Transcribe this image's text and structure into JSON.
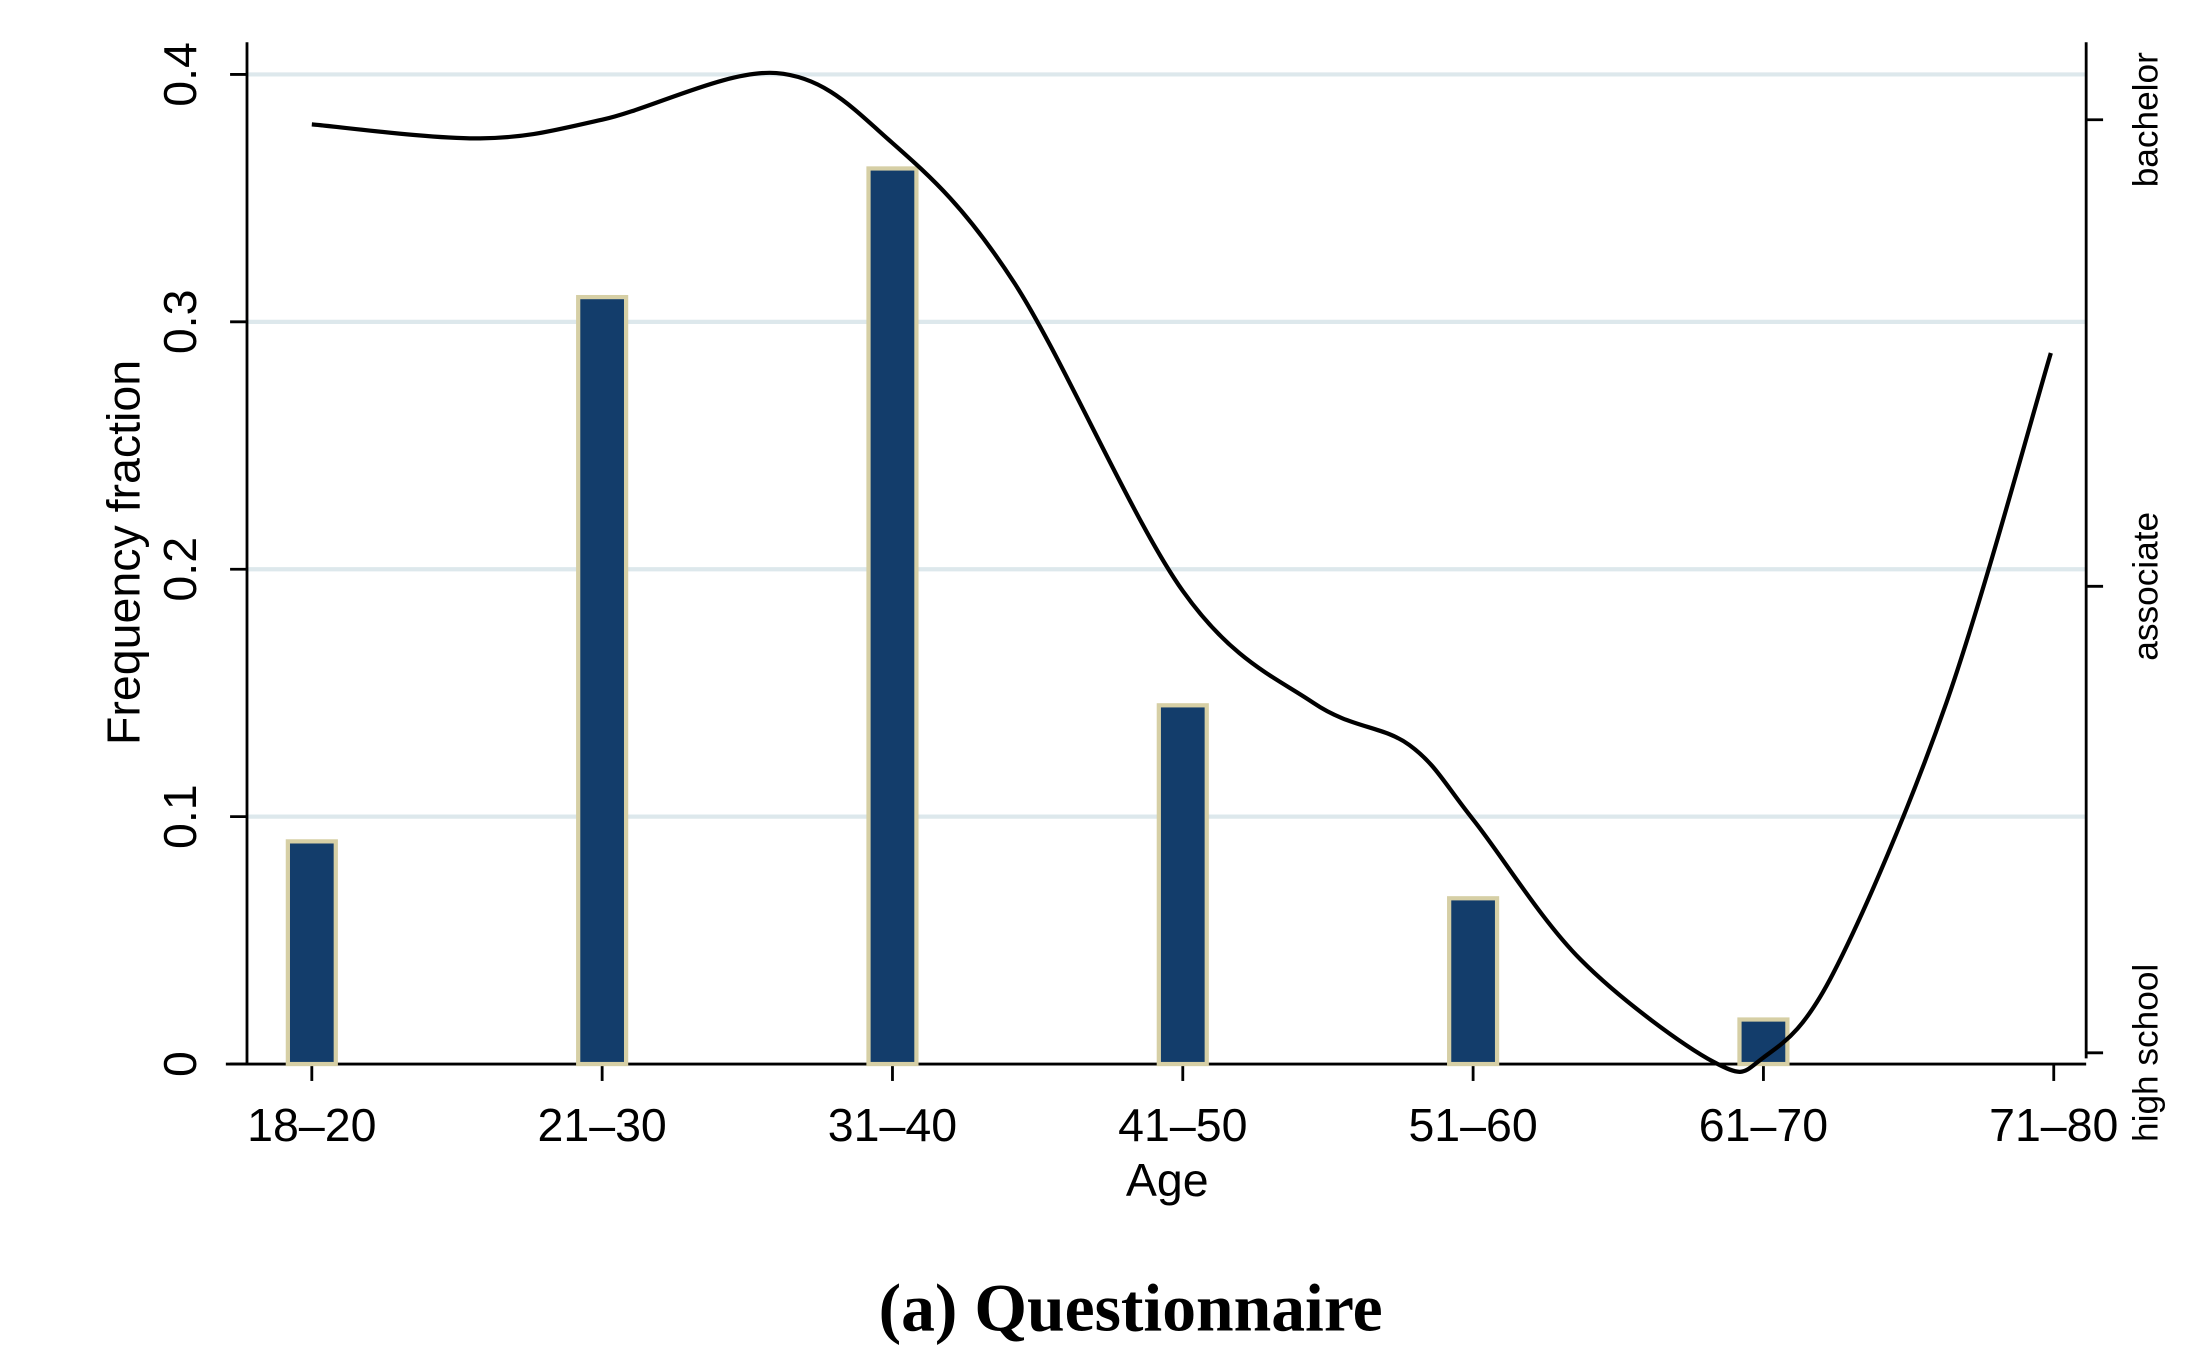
{
  "chart_data": {
    "type": "bar",
    "caption": "(a) Questionnaire",
    "x_label": "Age",
    "y_label": "Frequency fraction",
    "categories": [
      "18–20",
      "21–30",
      "31–40",
      "41–50",
      "51–60",
      "61–70",
      "71–80"
    ],
    "values": [
      0.09,
      0.31,
      0.362,
      0.145,
      0.067,
      0.018,
      0
    ],
    "color": "#133d6b",
    "edge_color": "#d6cfa5",
    "ylim": [
      0,
      0.413
    ],
    "yticks": [
      0,
      0.1,
      0.2,
      0.3,
      0.4
    ],
    "y2lim": [
      -0.024,
      2.166
    ],
    "y2ticks": [
      {
        "value": 0,
        "label": "high school"
      },
      {
        "value": 1,
        "label": "associate"
      },
      {
        "value": 2,
        "label": "bachelor"
      }
    ],
    "grid": true,
    "grid_color": "#dde8ec",
    "line": {
      "type": "line",
      "axis": "y2",
      "color": "#000000",
      "x": [
        0,
        0.58,
        1.0,
        1.6,
        2.0,
        2.42,
        3.0,
        3.45,
        3.78,
        4.0,
        4.37,
        4.83,
        5.0,
        5.24,
        5.63,
        5.99
      ],
      "values": [
        1.99,
        1.96,
        2.0,
        2.1,
        1.95,
        1.65,
        0.99,
        0.75,
        0.66,
        0.5,
        0.2,
        -0.02,
        -0.01,
        0.17,
        0.75,
        1.5
      ]
    }
  }
}
